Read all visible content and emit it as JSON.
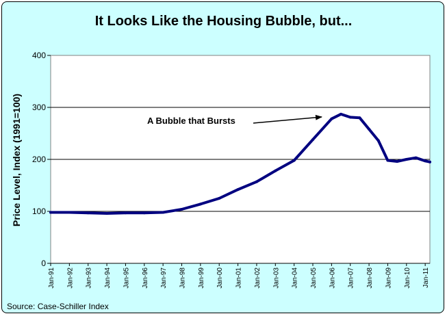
{
  "source": "Source: Case-Schiller Index",
  "chart_data": {
    "type": "line",
    "title": "It Looks Like the Housing Bubble, but...",
    "ylabel": "Price Level, Index (1991=100)",
    "xlabel": "",
    "ylim": [
      0,
      400
    ],
    "yticks": [
      0,
      100,
      200,
      300,
      400
    ],
    "xlim": [
      "Jan-91",
      "Apr-11"
    ],
    "grid": true,
    "line_color": "#000080",
    "x_tick_labels": [
      "Jan-91",
      "Jan-92",
      "Jan-93",
      "Jan-94",
      "Jan-95",
      "Jan-96",
      "Jan-97",
      "Jan-98",
      "Jan-99",
      "Jan-00",
      "Jan-01",
      "Jan-02",
      "Jan-03",
      "Jan-04",
      "Jan-05",
      "Jan-06",
      "Jan-07",
      "Jan-08",
      "Jan-09",
      "Jan-10",
      "Jan-11"
    ],
    "x": [
      "Jan-91",
      "Jan-92",
      "Jan-93",
      "Jan-94",
      "Jan-95",
      "Jan-96",
      "Jan-97",
      "Jan-98",
      "Jan-99",
      "Jan-00",
      "Jan-01",
      "Jan-02",
      "Jan-03",
      "Jan-04",
      "Jan-05",
      "Jan-06",
      "Jul-06",
      "Jan-07",
      "Jul-07",
      "Jan-08",
      "Jul-08",
      "Jan-09",
      "Jul-09",
      "Jan-10",
      "Jul-10",
      "Jan-11",
      "Apr-11"
    ],
    "series": [
      {
        "values": [
          98,
          98,
          97,
          96,
          97,
          97,
          98,
          104,
          114,
          125,
          142,
          157,
          178,
          198,
          238,
          278,
          287,
          281,
          280,
          258,
          236,
          198,
          196,
          200,
          203,
          197,
          195
        ]
      }
    ],
    "annotation": "A Bubble that Bursts"
  }
}
